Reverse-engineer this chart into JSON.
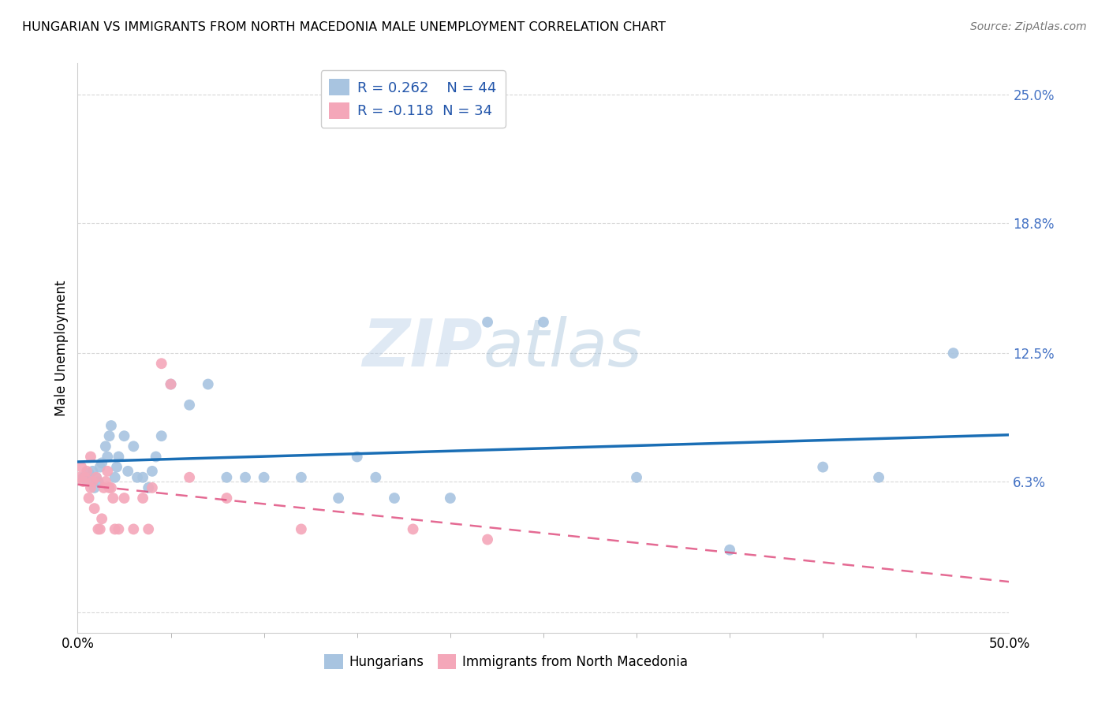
{
  "title": "HUNGARIAN VS IMMIGRANTS FROM NORTH MACEDONIA MALE UNEMPLOYMENT CORRELATION CHART",
  "source": "Source: ZipAtlas.com",
  "ylabel": "Male Unemployment",
  "xlim": [
    0.0,
    0.5
  ],
  "ylim": [
    -0.01,
    0.265
  ],
  "yticks": [
    0.0,
    0.063,
    0.125,
    0.188,
    0.25
  ],
  "ytick_labels": [
    "",
    "6.3%",
    "12.5%",
    "18.8%",
    "25.0%"
  ],
  "xtick_labels": [
    "0.0%",
    "50.0%"
  ],
  "xticks": [
    0.0,
    0.5
  ],
  "hungarian_R": 0.262,
  "hungarian_N": 44,
  "macedonian_R": -0.118,
  "macedonian_N": 34,
  "hungarian_color": "#a8c4e0",
  "macedonian_color": "#f4a7b9",
  "trend_hungarian_color": "#1a6eb5",
  "trend_macedonian_color": "#e05080",
  "hungarian_x": [
    0.003,
    0.005,
    0.006,
    0.008,
    0.009,
    0.01,
    0.011,
    0.012,
    0.013,
    0.015,
    0.016,
    0.017,
    0.018,
    0.02,
    0.021,
    0.022,
    0.025,
    0.027,
    0.03,
    0.032,
    0.035,
    0.038,
    0.04,
    0.042,
    0.045,
    0.05,
    0.06,
    0.07,
    0.08,
    0.09,
    0.1,
    0.12,
    0.14,
    0.15,
    0.16,
    0.17,
    0.2,
    0.22,
    0.25,
    0.3,
    0.35,
    0.4,
    0.43,
    0.47
  ],
  "hungarian_y": [
    0.065,
    0.063,
    0.067,
    0.068,
    0.06,
    0.065,
    0.063,
    0.07,
    0.072,
    0.08,
    0.075,
    0.085,
    0.09,
    0.065,
    0.07,
    0.075,
    0.085,
    0.068,
    0.08,
    0.065,
    0.065,
    0.06,
    0.068,
    0.075,
    0.085,
    0.11,
    0.1,
    0.11,
    0.065,
    0.065,
    0.065,
    0.065,
    0.055,
    0.075,
    0.065,
    0.055,
    0.055,
    0.14,
    0.14,
    0.065,
    0.03,
    0.07,
    0.065,
    0.125
  ],
  "macedonian_x": [
    0.001,
    0.002,
    0.003,
    0.004,
    0.005,
    0.006,
    0.007,
    0.007,
    0.008,
    0.009,
    0.01,
    0.011,
    0.012,
    0.013,
    0.014,
    0.015,
    0.016,
    0.017,
    0.018,
    0.019,
    0.02,
    0.022,
    0.025,
    0.03,
    0.035,
    0.038,
    0.04,
    0.045,
    0.05,
    0.06,
    0.08,
    0.12,
    0.18,
    0.22
  ],
  "macedonian_y": [
    0.065,
    0.07,
    0.063,
    0.065,
    0.068,
    0.055,
    0.06,
    0.075,
    0.063,
    0.05,
    0.065,
    0.04,
    0.04,
    0.045,
    0.06,
    0.063,
    0.068,
    0.06,
    0.06,
    0.055,
    0.04,
    0.04,
    0.055,
    0.04,
    0.055,
    0.04,
    0.06,
    0.12,
    0.11,
    0.065,
    0.055,
    0.04,
    0.04,
    0.035
  ],
  "watermark_zip": "ZIP",
  "watermark_atlas": "atlas",
  "background_color": "#ffffff",
  "grid_color": "#d8d8d8"
}
